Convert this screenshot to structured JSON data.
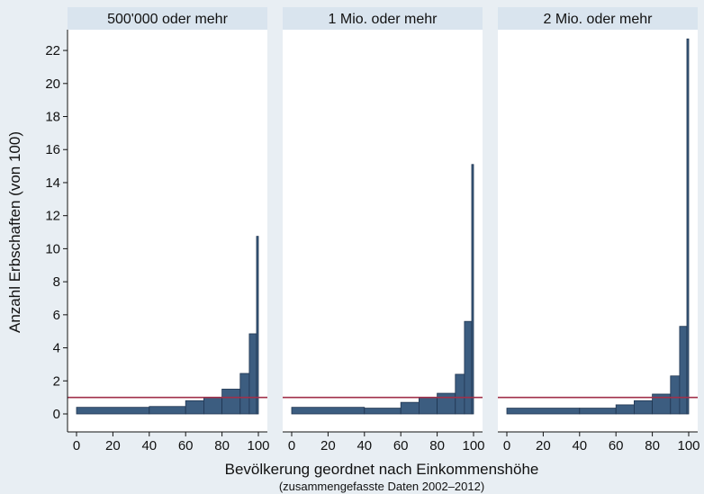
{
  "chart_data": {
    "type": "bar",
    "ylabel": "Anzahl Erbschaften (von 100)",
    "xlabel": "Bevölkerung geordnet nach Einkommenshöhe",
    "note": "(zusammengefasste Daten 2002–2012)",
    "xlim": [
      0,
      100
    ],
    "ylim": [
      0,
      23
    ],
    "xticks": [
      0,
      20,
      40,
      60,
      80,
      100
    ],
    "yticks": [
      0,
      2,
      4,
      6,
      8,
      10,
      12,
      14,
      16,
      18,
      20,
      22
    ],
    "reference_line": 1,
    "colors": {
      "bar": "#3c5d80",
      "bar_edge": "#1f3550",
      "reference": "#a0304a",
      "panel": "#ffffff",
      "background": "#e8eef3",
      "strip": "#d9e4ee"
    },
    "bins": [
      [
        0,
        40
      ],
      [
        40,
        60
      ],
      [
        60,
        70
      ],
      [
        70,
        80
      ],
      [
        80,
        90
      ],
      [
        90,
        95
      ],
      [
        95,
        99
      ],
      [
        99,
        100
      ]
    ],
    "panels": [
      {
        "title": "500'000 oder mehr",
        "values": [
          0.4,
          0.45,
          0.8,
          1.0,
          1.5,
          2.45,
          4.85,
          10.75
        ]
      },
      {
        "title": "1 Mio. oder mehr",
        "values": [
          0.4,
          0.35,
          0.7,
          1.0,
          1.25,
          2.4,
          5.6,
          15.1
        ]
      },
      {
        "title": "2 Mio. oder mehr",
        "values": [
          0.35,
          0.35,
          0.55,
          0.8,
          1.2,
          2.3,
          5.3,
          22.7
        ]
      }
    ]
  }
}
